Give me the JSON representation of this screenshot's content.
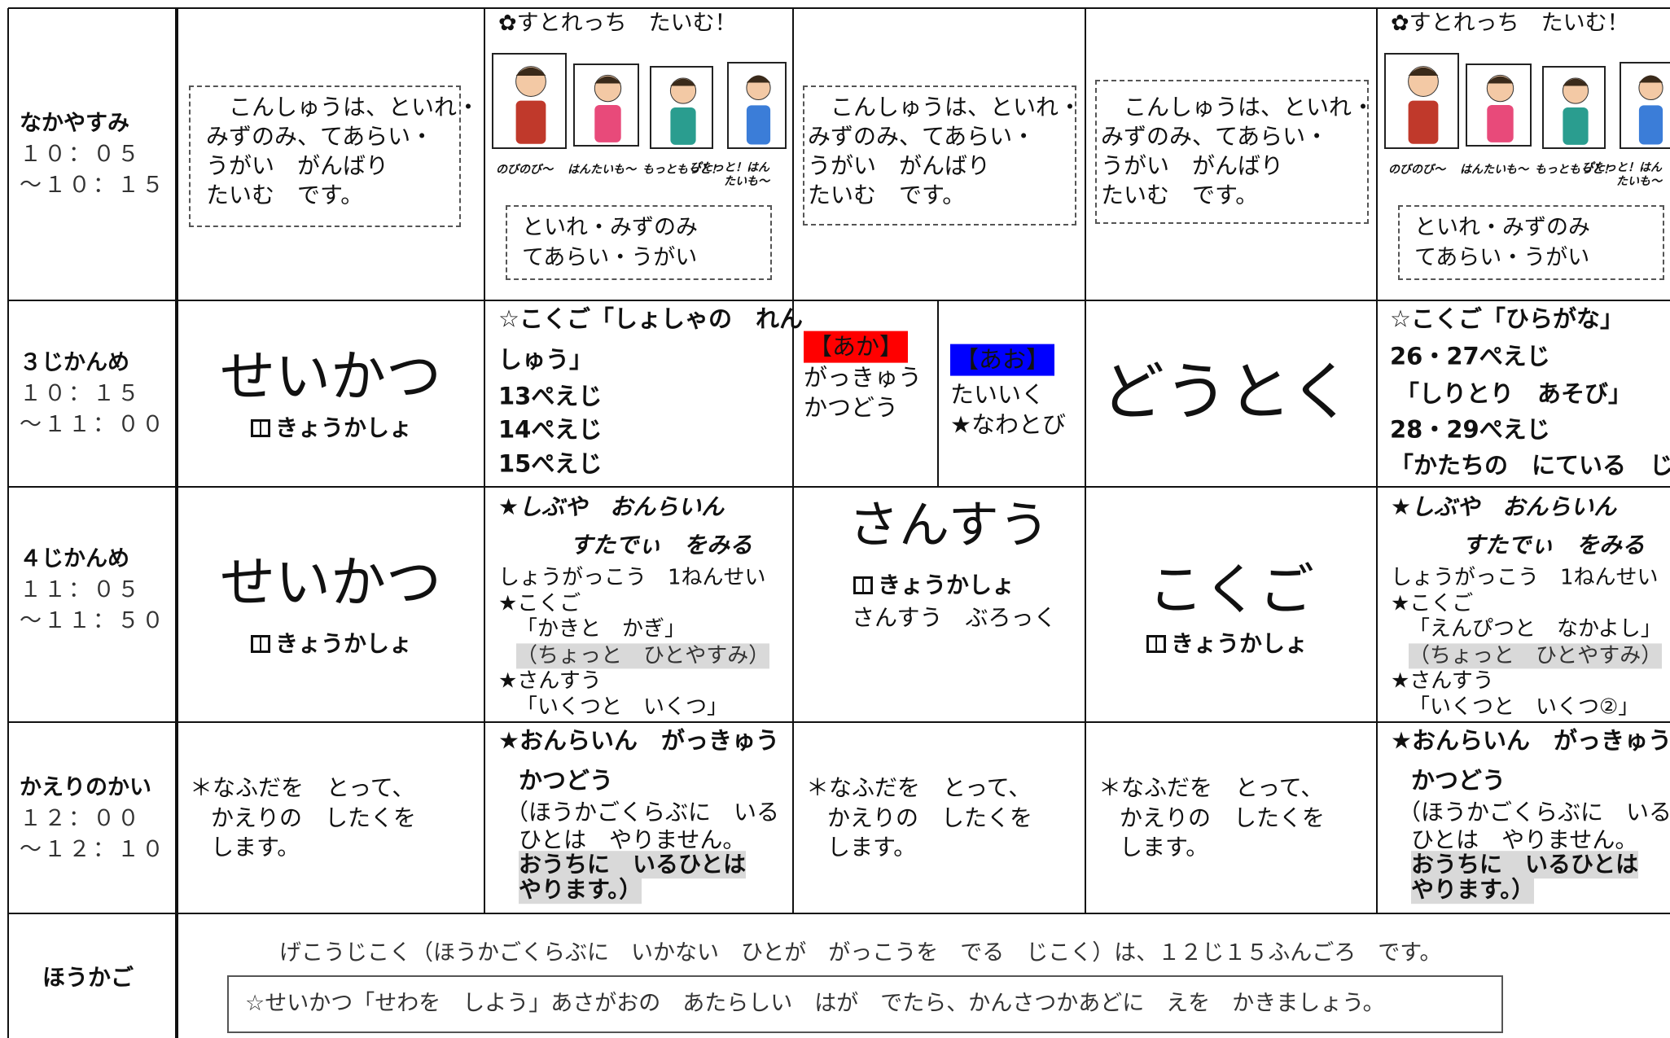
{
  "rows": [
    {
      "label": "なかやすみ",
      "times": [
        "１０：０５",
        "～１０：１５"
      ],
      "cells": [
        {
          "lines": [
            "こんしゅうは、といれ・",
            "みずのみ、てあらい・",
            "うがい　がんばり",
            "たいむ　です。"
          ]
        },
        {
          "heading": "✿すとれっち　たいむ！",
          "captions": [
            "のびのび～",
            "はんたいも～",
            "もっともっと！",
            "ぴたっと！はんたいも～"
          ],
          "lines": [
            "といれ・みずのみ",
            "てあらい・うがい"
          ]
        },
        {
          "lines": [
            "こんしゅうは、といれ・",
            "みずのみ、てあらい・",
            "うがい　がんばり",
            "たいむ　です。"
          ]
        },
        {
          "lines": [
            "こんしゅうは、といれ・",
            "みずのみ、てあらい・",
            "うがい　がんばり",
            "たいむ　です。"
          ]
        },
        {
          "heading": "✿すとれっち　たいむ！",
          "captions": [
            "のびのび～",
            "はんたいも～",
            "もっともっと！",
            "ぴたっと！はんたいも～"
          ],
          "lines": [
            "といれ・みずのみ",
            "てあらい・うがい"
          ]
        }
      ]
    },
    {
      "label": "３じかんめ",
      "times": [
        "１０：１５",
        "～１１：００"
      ],
      "cells": [
        {
          "title": "せいかつ",
          "sub": "きょうかしょ"
        },
        {
          "lines": [
            "☆こくご「しょしゃの　れん",
            "しゅう」",
            "13ぺえじ",
            "14ぺえじ",
            "15ぺえじ"
          ]
        },
        {
          "groups": [
            {
              "tag": "【あか】",
              "lines": [
                "がっきゅう",
                "かつどう"
              ]
            },
            {
              "tag": "【あお】",
              "lines": [
                "たいいく",
                "★なわとび"
              ]
            }
          ]
        },
        {
          "title": "どうとく"
        },
        {
          "lines": [
            "☆こくご「ひらがな」",
            "26・27ぺえじ",
            "「しりとり　あそび」",
            "28・29ぺえじ",
            "「かたちの　にている　じ」"
          ]
        }
      ]
    },
    {
      "label": "４じかんめ",
      "times": [
        "１１：０５",
        "～１１：５０"
      ],
      "cells": [
        {
          "title": "せいかつ",
          "sub": "きょうかしょ"
        },
        {
          "lines": [
            "★しぶや　おんらいん",
            "すたでぃ　をみる",
            "しょうがっこう　1ねんせい",
            "★こくご",
            "「かきと　かぎ」",
            "（ちょっと　ひとやすみ）",
            "★さんすう",
            "「いくつと　いくつ」"
          ]
        },
        {
          "title": "さんすう",
          "sub": "きょうかしょ",
          "lines": [
            "さんすう　ぶろっく"
          ]
        },
        {
          "title": "こくご",
          "sub": "きょうかしょ"
        },
        {
          "lines": [
            "★しぶや　おんらいん",
            "すたでぃ　をみる",
            "しょうがっこう　1ねんせい",
            "★こくご",
            "「えんぴつと　なかよし」",
            "（ちょっと　ひとやすみ）",
            "★さんすう",
            "「いくつと　いくつ②」"
          ]
        }
      ]
    },
    {
      "label": "かえりのかい",
      "times": [
        "１２：００",
        "～１２：１０"
      ],
      "cells": [
        {
          "lines": [
            "＊なふだを　とって、",
            "かえりの　したくを",
            "します。"
          ]
        },
        {
          "lines": [
            "★おんらいん　がっきゅう",
            "かつどう",
            "（ほうかごくらぶに　いる",
            "ひとは　やりません。",
            "おうちに　いるひとは",
            "やります。）"
          ]
        },
        {
          "lines": [
            "＊なふだを　とって、",
            "かえりの　したくを",
            "します。"
          ]
        },
        {
          "lines": [
            "＊なふだを　とって、",
            "かえりの　したくを",
            "します。"
          ]
        },
        {
          "lines": [
            "★おんらいん　がっきゅう",
            "かつどう",
            "（ほうかごくらぶに　いる",
            "ひとは　やりません。",
            "おうちに　いるひとは",
            "やります。）"
          ]
        }
      ]
    }
  ],
  "after": {
    "label": "ほうかご",
    "note": "げこうじこく（ほうかごくらぶに　いかない　ひとが　がっこうを　でる　じこく）は、１２じ１５ふんごろ　です。",
    "box": "☆せいかつ「せわを　しよう」あさがおの　あたらしい　はが　でたら、かんさつかあどに　えを　かきましょう。"
  }
}
